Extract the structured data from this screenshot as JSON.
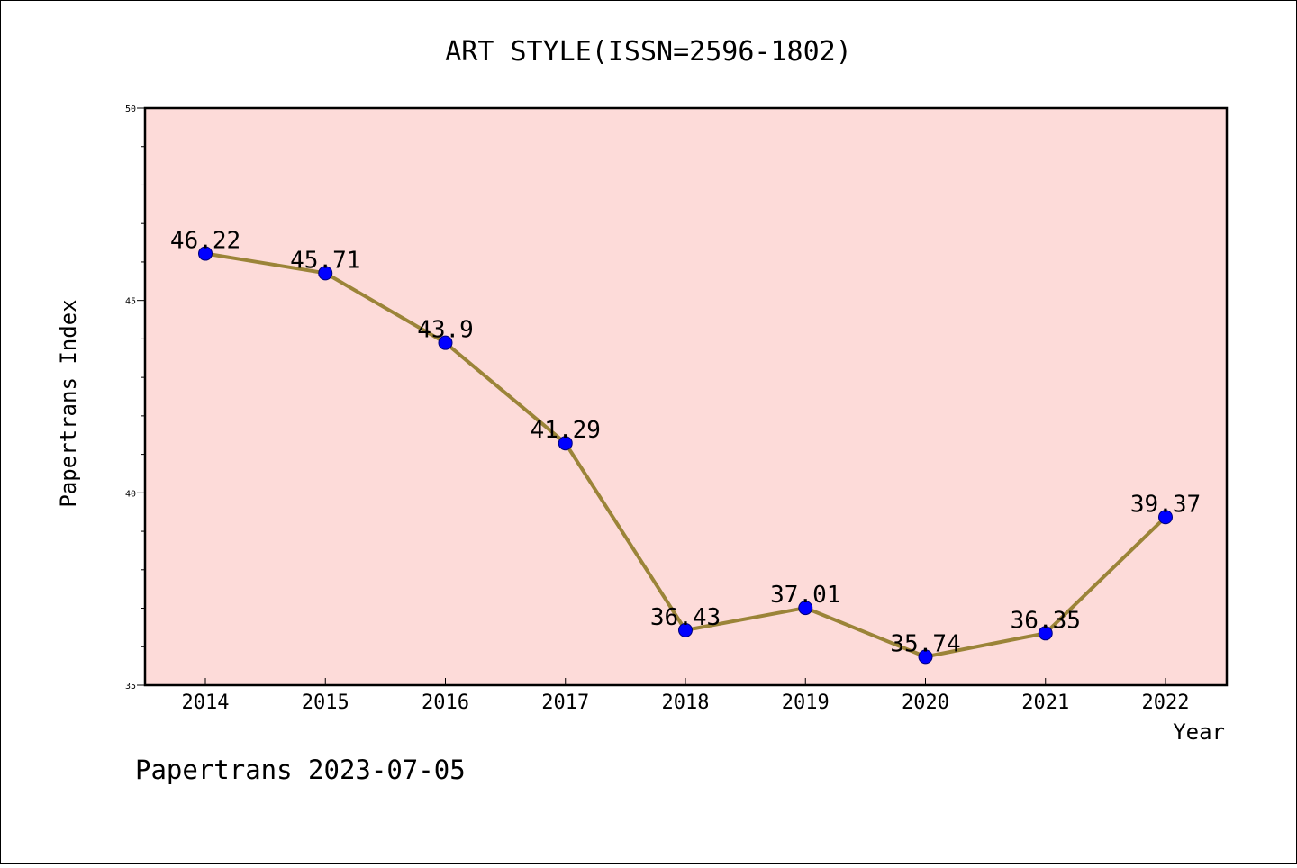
{
  "chart_data": {
    "type": "line",
    "title": "ART STYLE(ISSN=2596-1802)",
    "xlabel": "Year",
    "ylabel": "Papertrans Index",
    "ylim": [
      35,
      50
    ],
    "yticks": [
      "35",
      "40",
      "45",
      "50"
    ],
    "categories": [
      "2014",
      "2015",
      "2016",
      "2017",
      "2018",
      "2019",
      "2020",
      "2021",
      "2022"
    ],
    "values": [
      46.22,
      45.71,
      43.9,
      41.29,
      36.43,
      37.01,
      35.74,
      36.35,
      39.37
    ],
    "point_labels": [
      "46.22",
      "45.71",
      "43.9",
      "41.29",
      "36.43",
      "37.01",
      "35.74",
      "36.35",
      "39.37"
    ],
    "colors": {
      "plot_background": "#FDDBD9",
      "line": "#9B8438",
      "marker": "#0000FF"
    },
    "grid": false,
    "legend": "none"
  },
  "footer": {
    "text": "Papertrans 2023-07-05"
  }
}
